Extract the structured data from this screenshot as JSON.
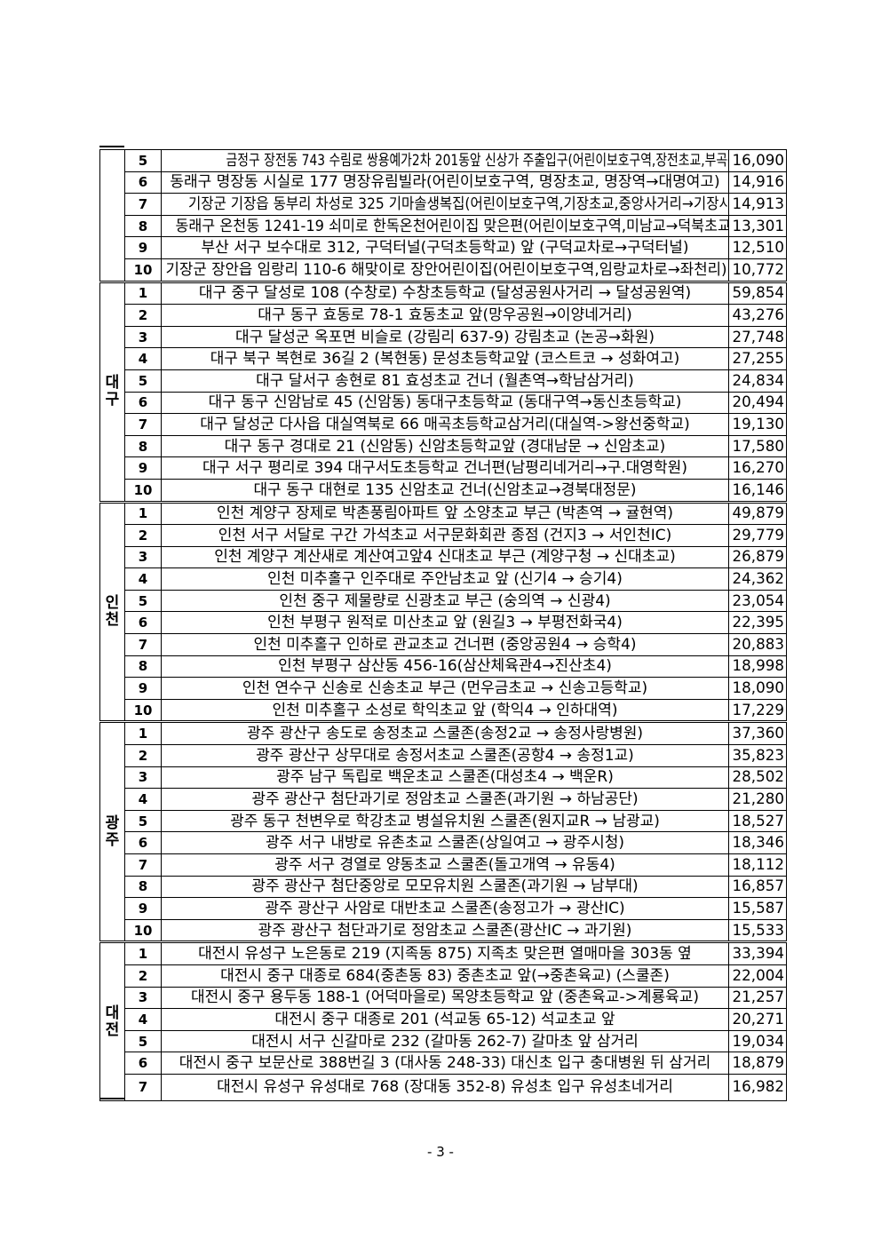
{
  "groups": [
    {
      "region": "",
      "rows": [
        {
          "no": "5",
          "location": "금정구 장전동 743 수림로 쌍용예가2차 201동앞 신상가 주출입구(어린이보호구역,장전초교,부곡동→회명동)",
          "count": "16,090"
        },
        {
          "no": "6",
          "location": "동래구 명장동 시실로 177 명장유림빌라(어린이보호구역, 명장초교, 명장역→대명여고)",
          "count": "14,916"
        },
        {
          "no": "7",
          "location": "기장군 기장읍 동부리 차성로 325 기마솔생복집(어린이보호구역,기장초교,중앙사거리→기장시장)",
          "count": "14,913"
        },
        {
          "no": "8",
          "location": "동래구 온천동 1241-19 쇠미로 한독온천어린이집 맞은편(어린이보호구역,미남교→덕북초교)",
          "count": "13,301"
        },
        {
          "no": "9",
          "location": "부산 서구 보수대로 312, 구덕터널(구덕초등학교) 앞 (구덕교차로→구덕터널)",
          "count": "12,510"
        },
        {
          "no": "10",
          "location": "기장군 장안읍 임랑리 110-6 해맞이로 장안어린이집(어린이보호구역,임랑교차로→좌천리)",
          "count": "10,772"
        }
      ]
    },
    {
      "region": "대구",
      "rows": [
        {
          "no": "1",
          "location": "대구 중구 달성로 108 (수창로) 수창초등학교 (달성공원사거리 → 달성공원역)",
          "count": "59,854"
        },
        {
          "no": "2",
          "location": "대구 동구 효동로 78-1 효동초교 앞(망우공원→이양네거리)",
          "count": "43,276"
        },
        {
          "no": "3",
          "location": "대구 달성군 옥포면 비슬로 (강림리 637-9) 강림초교 (논공→화원)",
          "count": "27,748"
        },
        {
          "no": "4",
          "location": "대구 북구 복현로 36길 2 (복현동) 문성초등학교앞 (코스트코 → 성화여고)",
          "count": "27,255"
        },
        {
          "no": "5",
          "location": "대구 달서구 송현로 81 효성초교 건너 (월촌역→학남삼거리)",
          "count": "24,834"
        },
        {
          "no": "6",
          "location": "대구 동구 신암남로 45 (신암동) 동대구초등학교 (동대구역→동신초등학교)",
          "count": "20,494"
        },
        {
          "no": "7",
          "location": "대구 달성군 다사읍 대실역북로 66 매곡초등학교삼거리(대실역->왕선중학교)",
          "count": "19,130"
        },
        {
          "no": "8",
          "location": "대구 동구 경대로 21 (신암동) 신암초등학교앞 (경대남문 → 신암초교)",
          "count": "17,580"
        },
        {
          "no": "9",
          "location": "대구 서구 평리로 394 대구서도초등학교 건너편(남평리네거리→구.대영학원)",
          "count": "16,270"
        },
        {
          "no": "10",
          "location": "대구 동구 대현로 135 신암초교 건너(신암초교→경북대정문)",
          "count": "16,146"
        }
      ]
    },
    {
      "region": "인천",
      "rows": [
        {
          "no": "1",
          "location": "인천 계양구 장제로 박촌풍림아파트 앞 소양초교 부근 (박촌역 → 귤현역)",
          "count": "49,879"
        },
        {
          "no": "2",
          "location": "인천 서구 서달로 구간 가석초교 서구문화회관 종점 (건지3 → 서인천IC)",
          "count": "29,779"
        },
        {
          "no": "3",
          "location": "인천 계양구 계산새로 계산여고앞4 신대초교 부근 (계양구청 → 신대초교)",
          "count": "26,879"
        },
        {
          "no": "4",
          "location": "인천 미추홀구 인주대로 주안남초교 앞 (신기4 → 승기4)",
          "count": "24,362"
        },
        {
          "no": "5",
          "location": "인천 중구 제물량로 신광초교 부근 (숭의역 → 신광4)",
          "count": "23,054"
        },
        {
          "no": "6",
          "location": "인천 부평구 원적로 미산초교 앞 (원길3 → 부평전화국4)",
          "count": "22,395"
        },
        {
          "no": "7",
          "location": "인천 미추홀구 인하로 관교초교 건너편 (중앙공원4 → 승학4)",
          "count": "20,883"
        },
        {
          "no": "8",
          "location": "인천 부평구 삼산동 456-16(삼산체육관4→진산초4)",
          "count": "18,998"
        },
        {
          "no": "9",
          "location": "인천 연수구 신송로 신송초교 부근 (먼우금초교 → 신송고등학교)",
          "count": "18,090"
        },
        {
          "no": "10",
          "location": "인천 미추홀구 소성로 학익초교 앞 (학익4 → 인하대역)",
          "count": "17,229"
        }
      ]
    },
    {
      "region": "광주",
      "rows": [
        {
          "no": "1",
          "location": "광주 광산구 송도로 송정초교 스쿨존(송정2교 → 송정사랑병원)",
          "count": "37,360"
        },
        {
          "no": "2",
          "location": "광주 광산구 상무대로 송정서초교 스쿨존(공항4 → 송정1교)",
          "count": "35,823"
        },
        {
          "no": "3",
          "location": "광주 남구 독립로 백운초교 스쿨존(대성초4 → 백운R)",
          "count": "28,502"
        },
        {
          "no": "4",
          "location": "광주 광산구 첨단과기로 정암초교 스쿨존(과기원 → 하남공단)",
          "count": "21,280"
        },
        {
          "no": "5",
          "location": "광주 동구 천변우로 학강초교 병설유치원 스쿨존(원지교R → 남광교)",
          "count": "18,527"
        },
        {
          "no": "6",
          "location": "광주 서구 내방로 유촌초교 스쿨존(상일여고 → 광주시청)",
          "count": "18,346"
        },
        {
          "no": "7",
          "location": "광주 서구 경열로 양동초교 스쿨존(돌고개역 → 유동4)",
          "count": "18,112"
        },
        {
          "no": "8",
          "location": "광주 광산구 첨단중앙로 모모유치원 스쿨존(과기원 → 남부대)",
          "count": "16,857"
        },
        {
          "no": "9",
          "location": "광주 광산구 사암로 대반초교 스쿨존(송정고가 → 광산IC)",
          "count": "15,587"
        },
        {
          "no": "10",
          "location": "광주 광산구 첨단과기로 정암초교 스쿨존(광산IC → 과기원)",
          "count": "15,533"
        }
      ]
    },
    {
      "region": "대전",
      "rows": [
        {
          "no": "1",
          "location": "대전시 유성구 노은동로 219 (지족동 875) 지족초 맞은편 열매마을 303동 옆",
          "count": "33,394"
        },
        {
          "no": "2",
          "location": "대전시 중구 대종로 684(중촌동 83) 중촌초교 앞(→중촌육교) (스쿨존)",
          "count": "22,004"
        },
        {
          "no": "3",
          "location": "대전시 중구 용두동 188-1 (어덕마을로) 목양초등학교 앞 (중촌육교->계룡육교)",
          "count": "21,257"
        },
        {
          "no": "4",
          "location": "대전시 중구 대종로 201 (석교동 65-12) 석교초교 앞",
          "count": "20,271"
        },
        {
          "no": "5",
          "location": "대전시 서구 신갈마로 232 (갈마동 262-7) 갈마초 앞 삼거리",
          "count": "19,034"
        },
        {
          "no": "6",
          "location": "대전시 중구 보문산로 388번길 3 (대사동 248-33) 대신초 입구 충대병원 뒤 삼거리",
          "count": "18,879"
        },
        {
          "no": "7",
          "location": "대전시 유성구 유성대로 768 (장대동 352-8) 유성초 입구 유성초네거리",
          "count": "16,982"
        }
      ]
    }
  ],
  "footer": {
    "page_number": "- 3 -"
  }
}
